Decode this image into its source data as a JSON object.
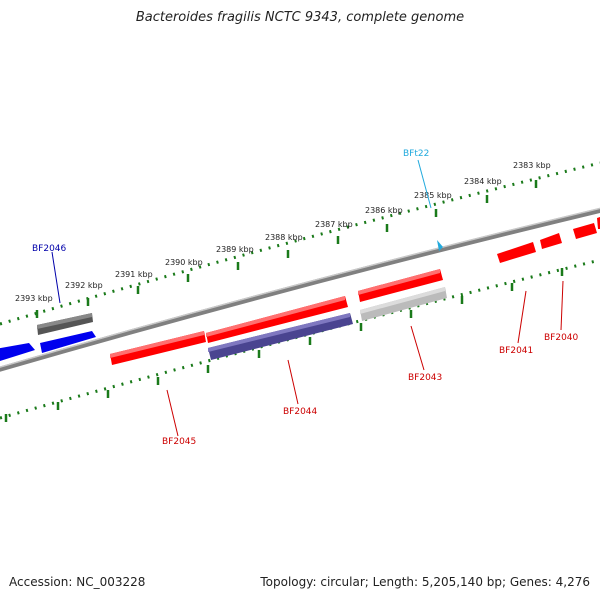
{
  "title": "Bacteroides fragilis NCTC 9343, complete genome",
  "footer": {
    "accession": "Accession: NC_003228",
    "summary": "Topology: circular; Length: 5,205,140 bp; Genes: 4,276"
  },
  "colors": {
    "backbone": "#808080",
    "tick": "#1a7a1a",
    "gene_forward_red": "#ff0000",
    "gene_blue": "#0000ee",
    "gene_purple": "#4a4490",
    "gene_grey_dark": "#555555",
    "gene_grey_light": "#bbbbbb",
    "label_red": "#cc0000",
    "label_blue": "#0000aa",
    "label_cyan": "#22aadd"
  },
  "scale_labels": [
    "2393 kbp",
    "2392 kbp",
    "2391 kbp",
    "2390 kbp",
    "2389 kbp",
    "2388 kbp",
    "2387 kbp",
    "2386 kbp",
    "2385 kbp",
    "2384 kbp",
    "2383 kbp"
  ],
  "gene_labels": [
    "BF2046",
    "BFt22",
    "BF2045",
    "BF2044",
    "BF2043",
    "BF2041",
    "BF2040"
  ]
}
